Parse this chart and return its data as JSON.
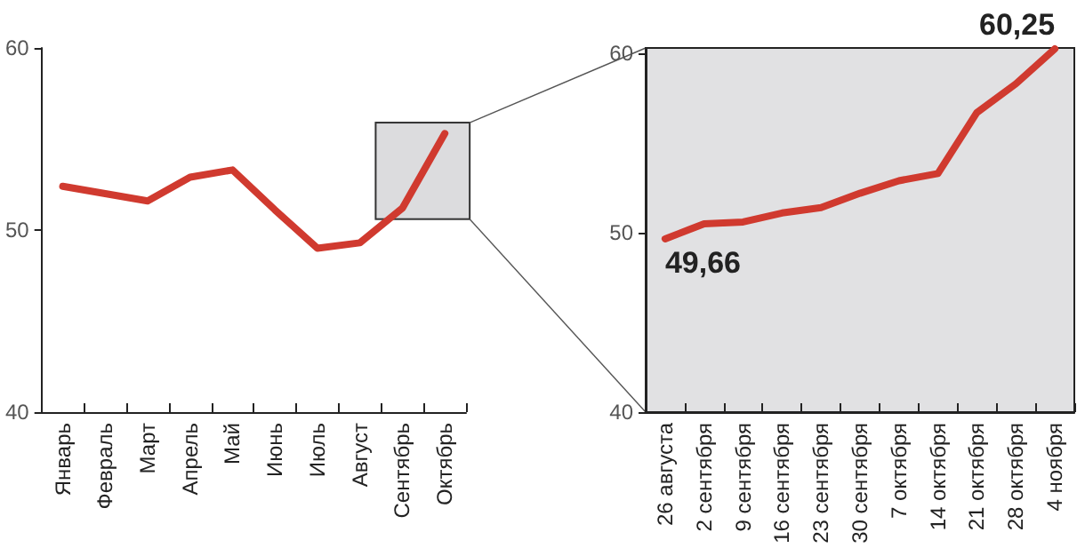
{
  "chart_data": [
    {
      "type": "line",
      "categories": [
        "Январь",
        "Февраль",
        "Март",
        "Апрель",
        "Май",
        "Июнь",
        "Июль",
        "Август",
        "Сентябрь",
        "Октябрь"
      ],
      "series": [
        {
          "color": "#d03a2f",
          "values": [
            52.4,
            52.0,
            51.6,
            52.9,
            53.3,
            51.1,
            49.0,
            49.3,
            51.2,
            55.3
          ]
        }
      ],
      "ylim": [
        40,
        60
      ],
      "yticks": [
        40,
        50,
        60
      ],
      "grid": false
    },
    {
      "type": "line",
      "categories": [
        "26 августа",
        "2 сентября",
        "9 сентября",
        "16 сентября",
        "23 сентября",
        "30 сентября",
        "7 октября",
        "14 октября",
        "21 октября",
        "28 октября",
        "4 ноября"
      ],
      "series": [
        {
          "color": "#d03a2f",
          "values": [
            49.66,
            50.5,
            50.6,
            51.1,
            51.4,
            52.2,
            52.9,
            53.3,
            56.7,
            58.3,
            60.25
          ],
          "value_labels": [
            "49,66",
            null,
            null,
            null,
            null,
            null,
            null,
            null,
            null,
            null,
            "60,25"
          ]
        }
      ],
      "ylim": [
        40,
        60.3
      ],
      "yticks": [
        40,
        50,
        60
      ],
      "grid": false
    }
  ]
}
